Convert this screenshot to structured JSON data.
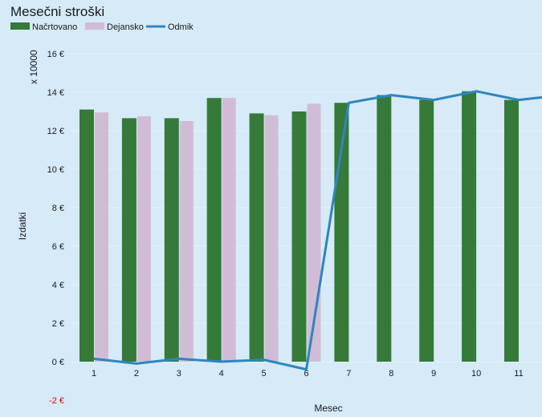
{
  "chart_data": {
    "type": "bar",
    "title": "Mesečni stroški",
    "xlabel": "Mesec",
    "ylabel": "Izdatki",
    "y_multiplier_label": "x 10000",
    "ylim": [
      -2,
      16
    ],
    "y_ticks": [
      -2,
      0,
      2,
      4,
      6,
      8,
      10,
      12,
      14,
      16
    ],
    "y_tick_format": "{v} €",
    "grid": true,
    "legend_position": "top-left",
    "categories": [
      "1",
      "2",
      "3",
      "4",
      "5",
      "6",
      "7",
      "8",
      "9",
      "10",
      "11"
    ],
    "series": [
      {
        "name": "Načrtovano",
        "type": "bar",
        "color": "#357a38",
        "values": [
          13.1,
          12.65,
          12.65,
          13.7,
          12.9,
          13.0,
          13.45,
          13.85,
          13.6,
          14.05,
          13.6
        ]
      },
      {
        "name": "Dejansko",
        "type": "bar",
        "color": "#d1bcd6",
        "values": [
          12.95,
          12.75,
          12.5,
          13.7,
          12.8,
          13.4,
          null,
          null,
          null,
          null,
          null
        ]
      },
      {
        "name": "Odmik",
        "type": "line",
        "color": "#2d86bf",
        "values": [
          0.15,
          -0.1,
          0.15,
          0.0,
          0.1,
          -0.4,
          13.45,
          13.85,
          13.6,
          14.05,
          13.6
        ],
        "trailing_value": 13.85
      }
    ]
  }
}
